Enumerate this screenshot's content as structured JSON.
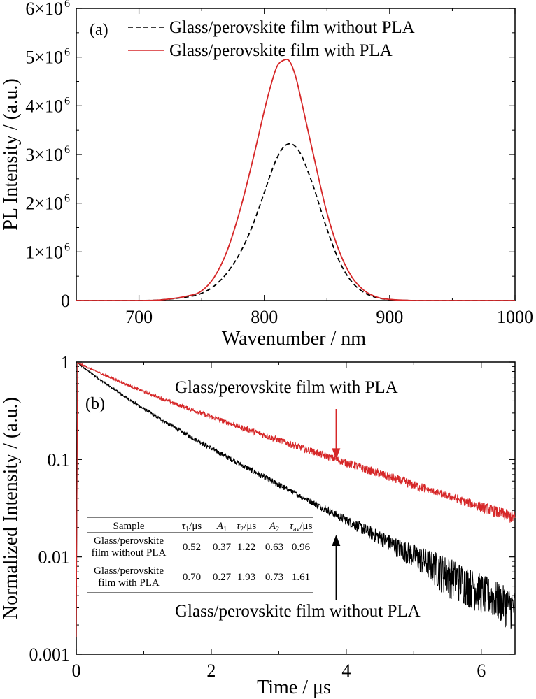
{
  "chart_data": [
    {
      "panel": "(a)",
      "type": "line",
      "xlabel": "Wavenumber / nm",
      "ylabel": "PL Intensity / (a.u.)",
      "xlim": [
        650,
        1000
      ],
      "ylim": [
        0,
        6000000
      ],
      "x_ticks": [
        700,
        800,
        900,
        1000
      ],
      "x_tick_labels": [
        "700",
        "800",
        "900",
        "1000"
      ],
      "y_ticks": [
        0,
        1000000,
        2000000,
        3000000,
        4000000,
        5000000,
        6000000
      ],
      "y_tick_labels": [
        {
          "base": "0",
          "exp": ""
        },
        {
          "base": "1×10",
          "exp": "6"
        },
        {
          "base": "2×10",
          "exp": "6"
        },
        {
          "base": "3×10",
          "exp": "6"
        },
        {
          "base": "4×10",
          "exp": "6"
        },
        {
          "base": "5×10",
          "exp": "6"
        },
        {
          "base": "6×10",
          "exp": "6"
        }
      ],
      "legend_position": "top-left",
      "series": [
        {
          "name": "Glass/perovskite film without PLA",
          "color": "#000000",
          "style": "dashed",
          "x": [
            650,
            700,
            720,
            740,
            750,
            760,
            770,
            780,
            790,
            800,
            805,
            810,
            815,
            820,
            825,
            830,
            835,
            840,
            850,
            860,
            870,
            880,
            890,
            900,
            920,
            950,
            1000
          ],
          "y": [
            0,
            0,
            20000,
            80000,
            150000,
            300000,
            560000,
            950000,
            1500000,
            2220000,
            2600000,
            2920000,
            3140000,
            3220000,
            3160000,
            2960000,
            2640000,
            2280000,
            1470000,
            800000,
            380000,
            160000,
            60000,
            20000,
            0,
            0,
            0
          ]
        },
        {
          "name": "Glass/perovskite film with PLA",
          "color": "#d62728",
          "style": "solid",
          "x": [
            650,
            700,
            720,
            740,
            750,
            760,
            770,
            780,
            790,
            800,
            805,
            810,
            815,
            820,
            825,
            830,
            840,
            850,
            860,
            870,
            880,
            890,
            900,
            920,
            950,
            1000
          ],
          "y": [
            0,
            0,
            20000,
            100000,
            200000,
            480000,
            1000000,
            1800000,
            2800000,
            3900000,
            4400000,
            4800000,
            4930000,
            4920000,
            4600000,
            4050000,
            2900000,
            1800000,
            1000000,
            480000,
            200000,
            70000,
            25000,
            0,
            0,
            0
          ]
        }
      ]
    },
    {
      "panel": "(b)",
      "type": "line",
      "xlabel": "Time / μs",
      "ylabel": "Normalized Intensity / (a.u.)",
      "y_scale": "log",
      "xlim": [
        0,
        6.5
      ],
      "ylim": [
        0.001,
        1
      ],
      "x_ticks": [
        0,
        2,
        4,
        6
      ],
      "x_tick_labels": [
        "0",
        "2",
        "4",
        "6"
      ],
      "y_ticks": [
        0.001,
        0.01,
        0.1,
        1
      ],
      "y_tick_labels": [
        "0.001",
        "0.01",
        "0.1",
        "1"
      ],
      "series": [
        {
          "name": "Glass/perovskite film without PLA",
          "color": "#000000",
          "style": "noisy",
          "x": [
            0.05,
            6.5
          ],
          "fit_tau_us": [
            0.52,
            1.22
          ],
          "fit_amp": [
            0.37,
            0.63
          ]
        },
        {
          "name": "Glass/perovskite film with PLA",
          "color": "#d62728",
          "style": "noisy",
          "x": [
            0.05,
            6.5
          ],
          "fit_tau_us": [
            0.7,
            1.93
          ],
          "fit_amp": [
            0.27,
            0.73
          ]
        }
      ],
      "annotations": {
        "with_pla": {
          "text": "Glass/perovskite film with PLA",
          "arrow_to": [
            3.85,
            0.1
          ],
          "color": "#d62728"
        },
        "without_pla": {
          "text": "Glass/perovskite film without PLA",
          "arrow_to": [
            3.85,
            0.025
          ],
          "color": "#000000"
        }
      },
      "table": {
        "headers": [
          {
            "main": "Sample",
            "sub": "",
            "tail": "",
            "italic": false
          },
          {
            "main": "τ",
            "sub": "1",
            "tail": "/μs",
            "italic": true
          },
          {
            "main": "A",
            "sub": "1",
            "tail": "",
            "italic": true
          },
          {
            "main": "τ",
            "sub": "2",
            "tail": "/μs",
            "italic": true
          },
          {
            "main": "A",
            "sub": "2",
            "tail": "",
            "italic": true
          },
          {
            "main": "τ",
            "sub": "av",
            "tail": "/μs",
            "italic": true
          }
        ],
        "rows": [
          {
            "sample": [
              "Glass/perovskite",
              "film without PLA"
            ],
            "values": [
              "0.52",
              "0.37",
              "1.22",
              "0.63",
              "0.96"
            ]
          },
          {
            "sample": [
              "Glass/perovskite",
              "film with PLA"
            ],
            "values": [
              "0.70",
              "0.27",
              "1.93",
              "0.73",
              "1.61"
            ]
          }
        ]
      }
    }
  ]
}
